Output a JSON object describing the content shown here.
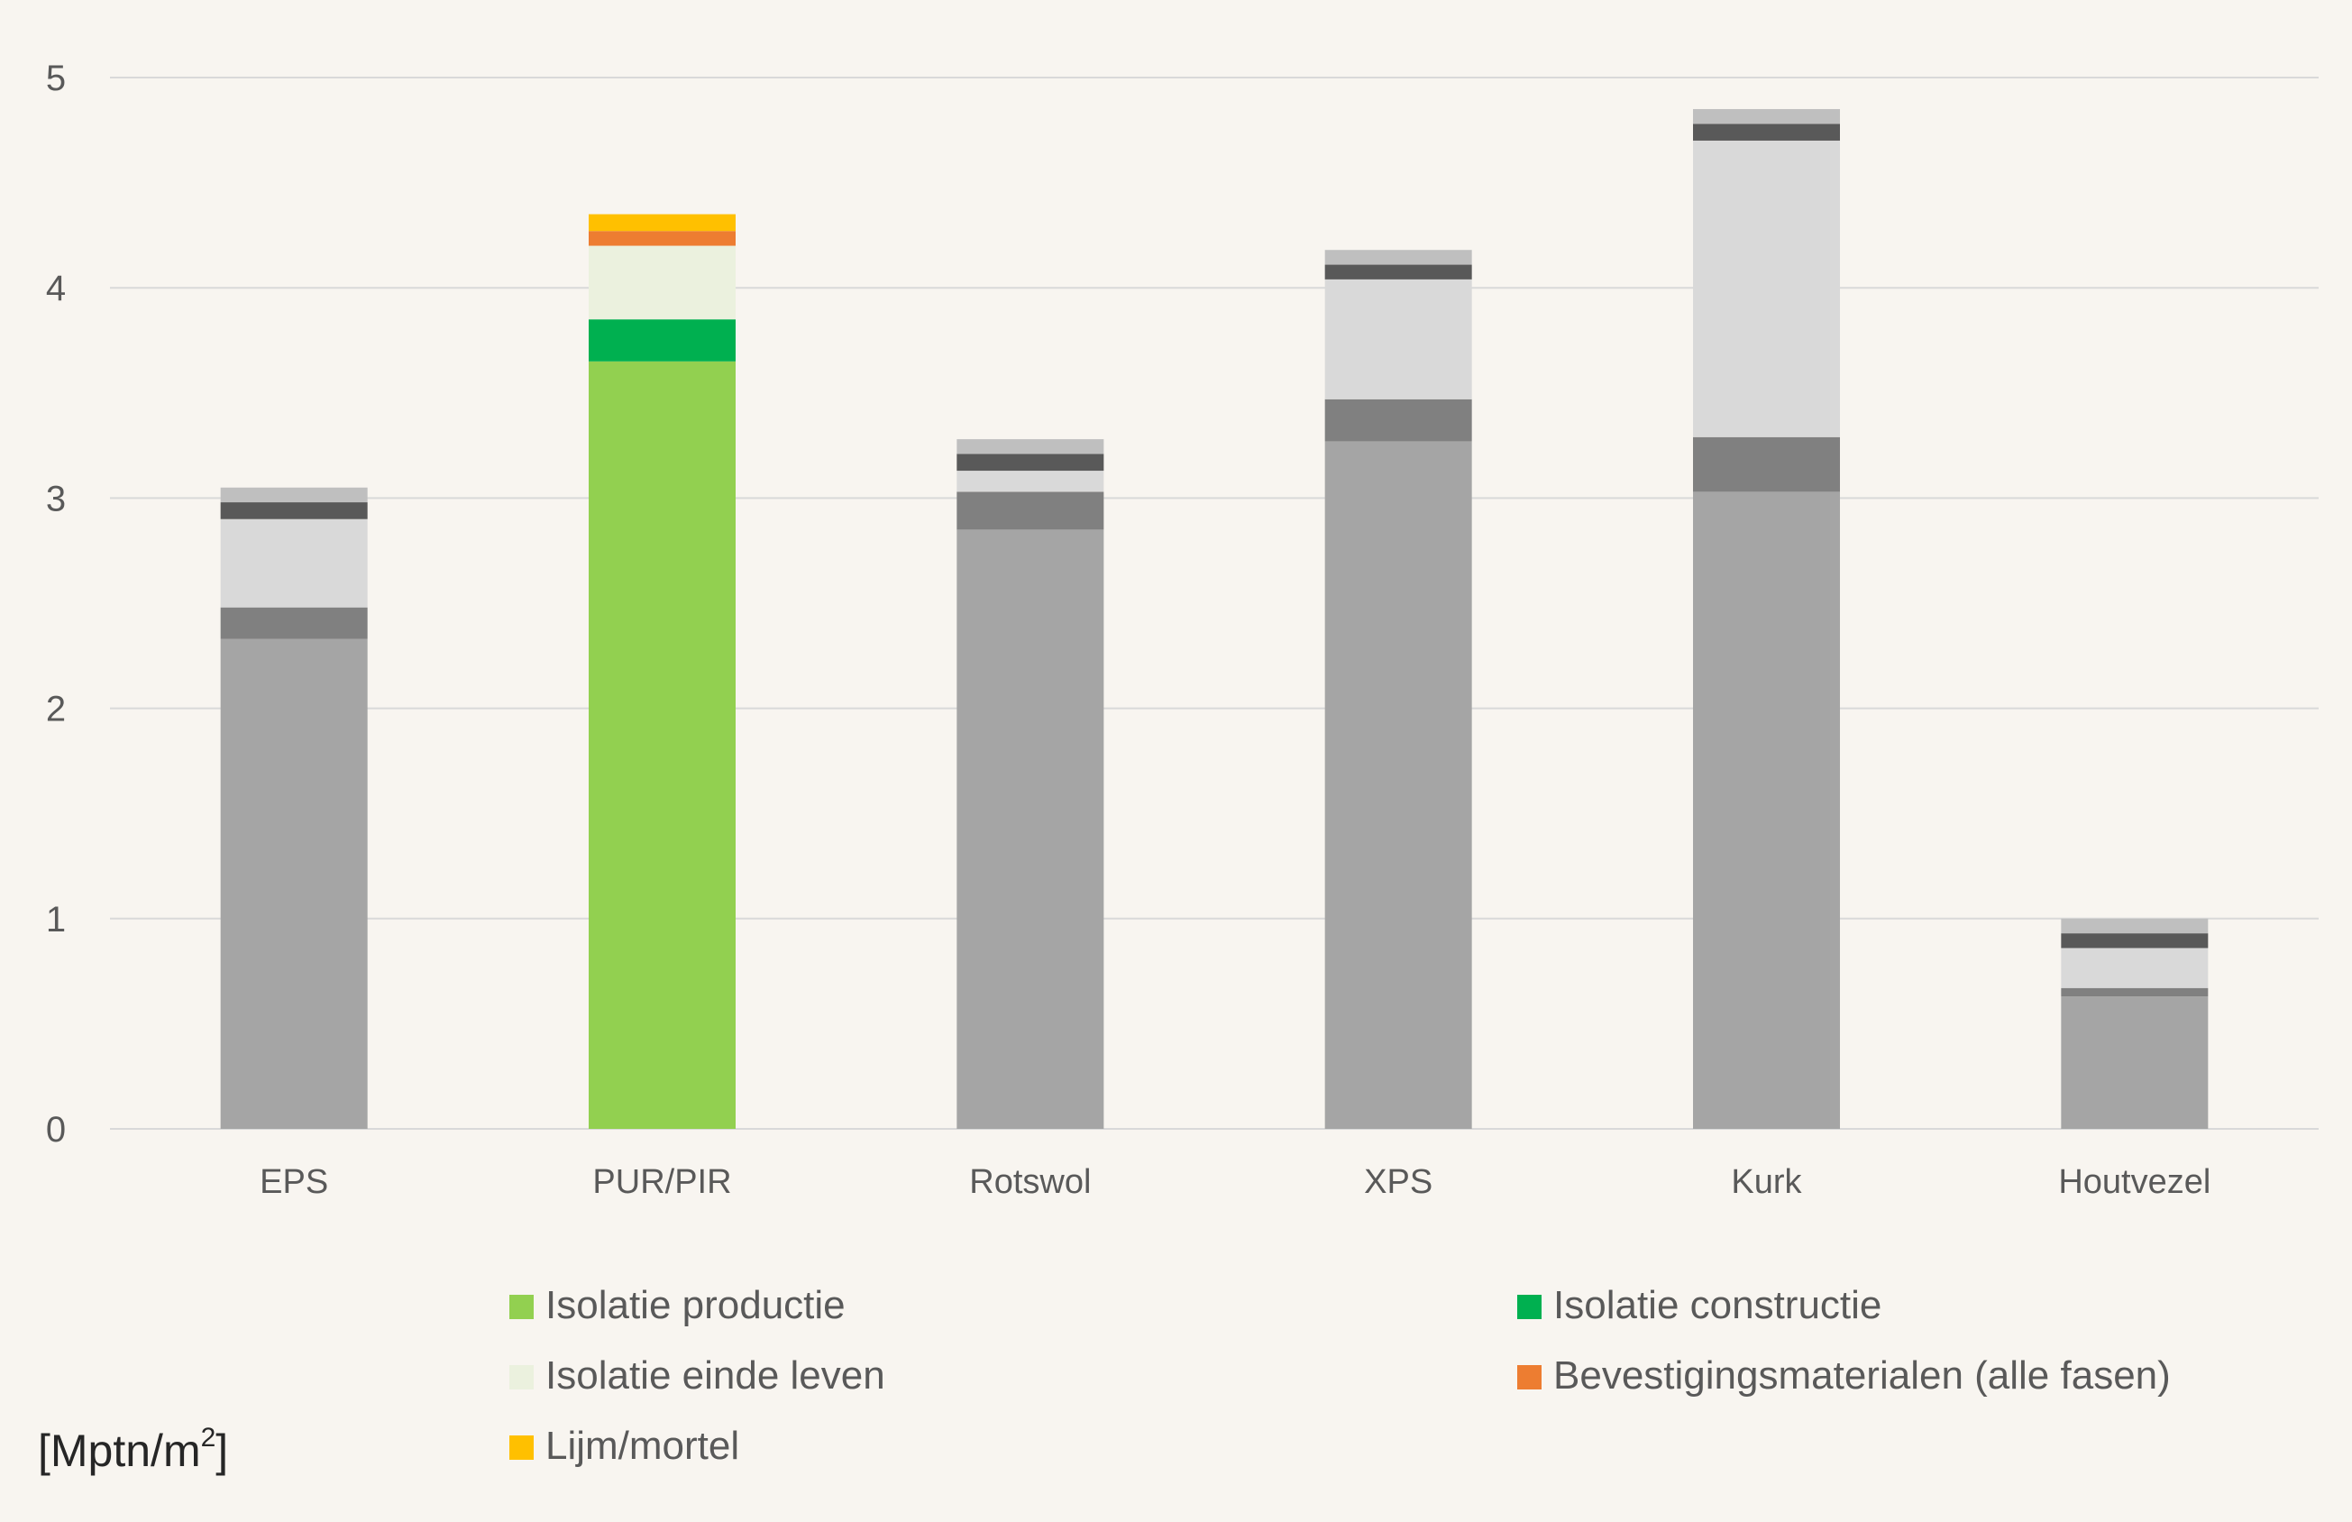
{
  "chart_data": {
    "type": "bar",
    "stacked": true,
    "categories": [
      "EPS",
      "PUR/PIR",
      "Rotswol",
      "XPS",
      "Kurk",
      "Houtvezel"
    ],
    "ylim": [
      0,
      5
    ],
    "yticks": [
      "0",
      "1",
      "2",
      "3",
      "4",
      "5"
    ],
    "grid": true,
    "legend_position": "bottom",
    "series": [
      {
        "name": "Isolatie productie",
        "color_highlight": "#92d050",
        "color_muted": "#a5a5a5",
        "values": [
          2.33,
          3.65,
          2.85,
          3.27,
          3.03,
          0.63
        ]
      },
      {
        "name": "Isolatie constructie",
        "color_highlight": "#00b050",
        "color_muted": "#808080",
        "values": [
          0.15,
          0.2,
          0.18,
          0.2,
          0.26,
          0.04
        ]
      },
      {
        "name": "Isolatie einde leven",
        "color_highlight": "#ebf1de",
        "color_muted": "#d9d9d9",
        "values": [
          0.42,
          0.35,
          0.1,
          0.57,
          1.41,
          0.19
        ]
      },
      {
        "name": "Bevestigingsmaterialen (alle fasen)",
        "color_highlight": "#ed7d31",
        "color_muted": "#595959",
        "values": [
          0.08,
          0.07,
          0.08,
          0.07,
          0.08,
          0.07
        ]
      },
      {
        "name": "Lijm/mortel",
        "color_highlight": "#ffc000",
        "color_muted": "#bfbfbf",
        "values": [
          0.07,
          0.08,
          0.07,
          0.07,
          0.07,
          0.07
        ]
      }
    ],
    "highlighted_category": "PUR/PIR",
    "unit_label": {
      "main": "[Mptn/m",
      "sup": "2",
      "close": "]"
    }
  }
}
